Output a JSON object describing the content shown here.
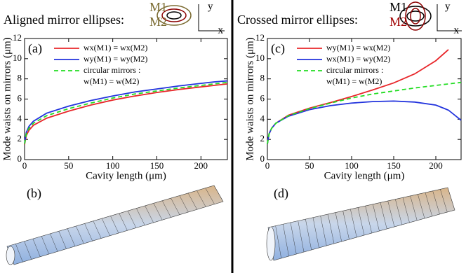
{
  "chart_data": [
    {
      "type": "line",
      "title": "Aligned mirror ellipses:",
      "annotations": [
        "(a)",
        "(b)"
      ],
      "icon_labels": [
        "M1",
        "M2",
        "y",
        "x"
      ],
      "xlabel": "Cavity length (μm)",
      "ylabel": "Mode waists on mirrors (μm)",
      "x": [
        0,
        2,
        5,
        10,
        25,
        50,
        75,
        100,
        125,
        150,
        175,
        200,
        215,
        230
      ],
      "series": [
        {
          "name": [
            "wx(M1) = wx(M2)"
          ],
          "color": "#e8262a",
          "dashed": false,
          "values": [
            1.5,
            2.4,
            2.9,
            3.4,
            4.1,
            4.8,
            5.4,
            5.9,
            6.3,
            6.65,
            6.95,
            7.2,
            7.35,
            7.5
          ]
        },
        {
          "name": [
            "wy(M1) = wy(M2)"
          ],
          "color": "#2233dd",
          "dashed": false,
          "values": [
            1.6,
            2.7,
            3.3,
            3.8,
            4.6,
            5.3,
            5.85,
            6.3,
            6.7,
            7.0,
            7.3,
            7.55,
            7.7,
            7.8
          ]
        },
        {
          "name": [
            "circular mirrors :",
            "w(M1) = w(M2)"
          ],
          "color": "#22dd22",
          "dashed": true,
          "values": [
            1.55,
            2.55,
            3.1,
            3.6,
            4.35,
            5.05,
            5.6,
            6.1,
            6.5,
            6.8,
            7.1,
            7.35,
            7.5,
            7.65
          ]
        }
      ],
      "xlim": [
        0,
        230
      ],
      "xticks": [
        0,
        50,
        100,
        150,
        200
      ],
      "ylim": [
        0,
        12
      ],
      "yticks": [
        0,
        2,
        4,
        6,
        8,
        10,
        12
      ]
    },
    {
      "type": "line",
      "title": "Crossed mirror ellipses:",
      "annotations": [
        "(c)",
        "(d)"
      ],
      "icon_labels": [
        "M1",
        "M2",
        "y",
        "x"
      ],
      "xlabel": "Cavity length (μm)",
      "ylabel": "Mode waists on mirrors (μm)",
      "x": [
        0,
        2,
        5,
        10,
        25,
        50,
        75,
        100,
        125,
        150,
        175,
        200,
        215,
        230
      ],
      "series": [
        {
          "name": [
            "wy(M1) = wx(M2)"
          ],
          "color": "#e8262a",
          "dashed": false,
          "values": [
            1.55,
            2.55,
            3.1,
            3.6,
            4.4,
            5.1,
            5.65,
            6.25,
            6.9,
            7.6,
            8.5,
            9.8,
            10.9,
            null
          ]
        },
        {
          "name": [
            "wx(M1) = wy(M2)"
          ],
          "color": "#2233dd",
          "dashed": false,
          "values": [
            1.55,
            2.55,
            3.1,
            3.6,
            4.3,
            4.95,
            5.35,
            5.6,
            5.75,
            5.8,
            5.7,
            5.4,
            4.9,
            3.9
          ]
        },
        {
          "name": [
            "circular mirrors :",
            "w(M1) = w(M2)"
          ],
          "color": "#22dd22",
          "dashed": true,
          "values": [
            1.55,
            2.55,
            3.1,
            3.6,
            4.35,
            5.05,
            5.6,
            6.1,
            6.5,
            6.8,
            7.1,
            7.35,
            7.5,
            7.65
          ]
        }
      ],
      "xlim": [
        0,
        230
      ],
      "xticks": [
        0,
        50,
        100,
        150,
        200
      ],
      "ylim": [
        0,
        12
      ],
      "yticks": [
        0,
        2,
        4,
        6,
        8,
        10,
        12
      ]
    }
  ]
}
